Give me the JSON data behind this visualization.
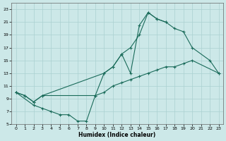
{
  "xlabel": "Humidex (Indice chaleur)",
  "bg_color": "#cce8e8",
  "grid_color": "#aad0d0",
  "line_color": "#1a6b5a",
  "line1_x": [
    0,
    1,
    2,
    3,
    9,
    10,
    11,
    12,
    13,
    14,
    15,
    16,
    17
  ],
  "line1_y": [
    10,
    9.5,
    8.5,
    9.5,
    9.5,
    13,
    14,
    16,
    13,
    20.5,
    22.5,
    21.5,
    21
  ],
  "line2_x": [
    0,
    1,
    2,
    3,
    10,
    11,
    12,
    13,
    14,
    15,
    16,
    17,
    18,
    19,
    20,
    22,
    23
  ],
  "line2_y": [
    10,
    9.5,
    8.5,
    9.5,
    13,
    14,
    16,
    17,
    19,
    22.5,
    21.5,
    21,
    20,
    19.5,
    17,
    15,
    13
  ],
  "line3_x": [
    0,
    2,
    3,
    4,
    5,
    6,
    7,
    8,
    9,
    10,
    11,
    12,
    13,
    14,
    15,
    16,
    17,
    18,
    19,
    20,
    23
  ],
  "line3_y": [
    10,
    8,
    7.5,
    7,
    6.5,
    6.5,
    5.5,
    5.5,
    9.5,
    10,
    11,
    11.5,
    12,
    12.5,
    13,
    13.5,
    14,
    14,
    14.5,
    15,
    13
  ],
  "ylim": [
    5,
    24
  ],
  "xlim": [
    -0.5,
    23.5
  ],
  "yticks": [
    5,
    7,
    9,
    11,
    13,
    15,
    17,
    19,
    21,
    23
  ],
  "xticks": [
    0,
    1,
    2,
    3,
    4,
    5,
    6,
    7,
    8,
    9,
    10,
    11,
    12,
    13,
    14,
    15,
    16,
    17,
    18,
    19,
    20,
    21,
    22,
    23
  ]
}
